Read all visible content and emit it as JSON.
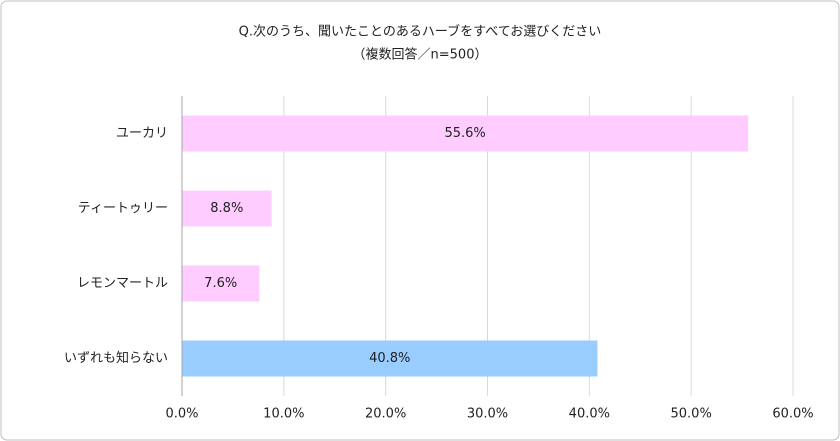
{
  "chart_data": {
    "type": "hbar",
    "title": "Q.次のうち、聞いたことのあるハーブをすべてお選びください",
    "subtitle": "（複数回答／n=500）",
    "categories": [
      "ユーカリ",
      "ティートゥリー",
      "レモンマートル",
      "いずれも知らない"
    ],
    "values": [
      55.6,
      8.8,
      7.6,
      40.8
    ],
    "value_labels": [
      "55.6%",
      "8.8%",
      "7.6%",
      "40.8%"
    ],
    "colors": [
      "#ffccff",
      "#ffccff",
      "#ffccff",
      "#99ccff"
    ],
    "xlim": [
      0,
      60
    ],
    "xticks": [
      {
        "value": 0,
        "label": "0.0%"
      },
      {
        "value": 10,
        "label": "10.0%"
      },
      {
        "value": 20,
        "label": "20.0%"
      },
      {
        "value": 30,
        "label": "30.0%"
      },
      {
        "value": 40,
        "label": "40.0%"
      },
      {
        "value": 50,
        "label": "50.0%"
      },
      {
        "value": 60,
        "label": "60.0%"
      }
    ],
    "grid": true
  }
}
